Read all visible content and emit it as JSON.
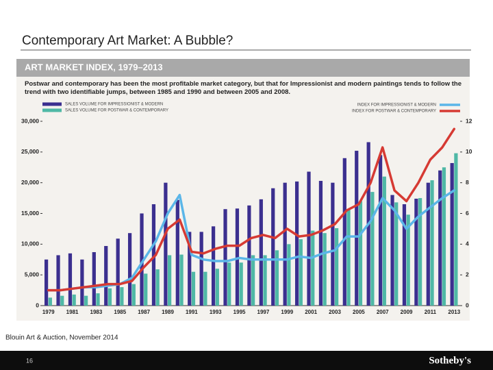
{
  "slide_title": "Contemporary Art Market: A Bubble?",
  "source": "Blouin Art & Auction, November 2014",
  "page_number": "16",
  "logo": "Sotheby's",
  "chart_data": {
    "type": "bar",
    "title": "ART MARKET INDEX, 1979–2013",
    "subtitle": "Postwar and contemporary has been the most profitable market category, but that for Impressionist and modern paintings tends to follow the trend with two identifiable jumps, between 1985 and 1990 and between 2005 and 2008.",
    "categories": [
      "1979",
      null,
      "1981",
      null,
      "1983",
      null,
      "1985",
      null,
      "1987",
      null,
      "1989",
      null,
      "1991",
      null,
      "1993",
      null,
      "1995",
      null,
      "1997",
      null,
      "1999",
      null,
      "2001",
      null,
      "2003",
      null,
      "2005",
      null,
      "2007",
      null,
      "2009",
      null,
      "2011",
      null,
      "2013"
    ],
    "series": [
      {
        "name": "SALES VOLUME FOR IMPRESSIONIST & MODERN",
        "type": "bar",
        "color": "#3b2f8f",
        "values": [
          7500,
          8200,
          8500,
          7500,
          8700,
          9700,
          10900,
          11800,
          15000,
          16500,
          20000,
          17200,
          12000,
          12000,
          12900,
          15700,
          15800,
          16300,
          17300,
          19100,
          20000,
          20200,
          21800,
          20300,
          20000,
          24000,
          25200,
          26600,
          24500,
          18000,
          16500,
          17400,
          20000,
          22000,
          23200
        ]
      },
      {
        "name": "SALES VOLUME FOR POSTWAR & CONTEMPORARY",
        "type": "bar",
        "color": "#4fb8a6",
        "values": [
          1300,
          1600,
          1800,
          1600,
          2000,
          2800,
          3000,
          3500,
          5200,
          5900,
          8200,
          8300,
          5500,
          5500,
          6000,
          7000,
          7000,
          8200,
          8200,
          9000,
          10000,
          10800,
          12200,
          11800,
          12600,
          15600,
          17000,
          18500,
          21000,
          16800,
          14800,
          17500,
          20400,
          22500,
          24800
        ]
      },
      {
        "name": "INDEX FOR IMPRESSIONIST & MODERN",
        "type": "line",
        "axis": "y2",
        "color": "#5bb6e8",
        "values": [
          1.0,
          1.0,
          1.1,
          1.2,
          1.2,
          1.3,
          1.4,
          1.8,
          3.0,
          4.2,
          6.0,
          7.2,
          3.3,
          3.0,
          2.9,
          2.9,
          3.1,
          3.0,
          3.0,
          3.0,
          3.0,
          3.2,
          3.1,
          3.4,
          3.6,
          4.5,
          4.5,
          5.5,
          7.0,
          6.2,
          5.0,
          5.8,
          6.4,
          7.0,
          7.5
        ]
      },
      {
        "name": "INDEX FOR POSTWAR & CONTEMPORARY",
        "type": "line",
        "axis": "y2",
        "color": "#d63a33",
        "values": [
          1.0,
          1.0,
          1.1,
          1.2,
          1.3,
          1.4,
          1.4,
          1.6,
          2.5,
          3.3,
          5.0,
          5.6,
          3.5,
          3.4,
          3.7,
          3.9,
          3.9,
          4.4,
          4.6,
          4.4,
          5.0,
          4.5,
          4.6,
          4.9,
          5.3,
          6.2,
          6.6,
          8.0,
          10.3,
          7.5,
          6.8,
          8.0,
          9.5,
          10.3,
          11.5
        ]
      }
    ],
    "ylim": [
      0,
      30000
    ],
    "yticks": [
      0,
      {
        "value": 5000,
        "label": "5,000"
      },
      {
        "value": 10000,
        "label": "10,000"
      },
      {
        "value": 15000,
        "label": "15,000"
      },
      {
        "value": 20000,
        "label": "20,000"
      },
      {
        "value": 25000,
        "label": "25,000"
      },
      {
        "value": 30000,
        "label": "30,000"
      }
    ],
    "y2lim": [
      0,
      12
    ],
    "y2ticks": [
      0,
      2,
      4,
      6,
      8,
      10,
      12
    ]
  }
}
